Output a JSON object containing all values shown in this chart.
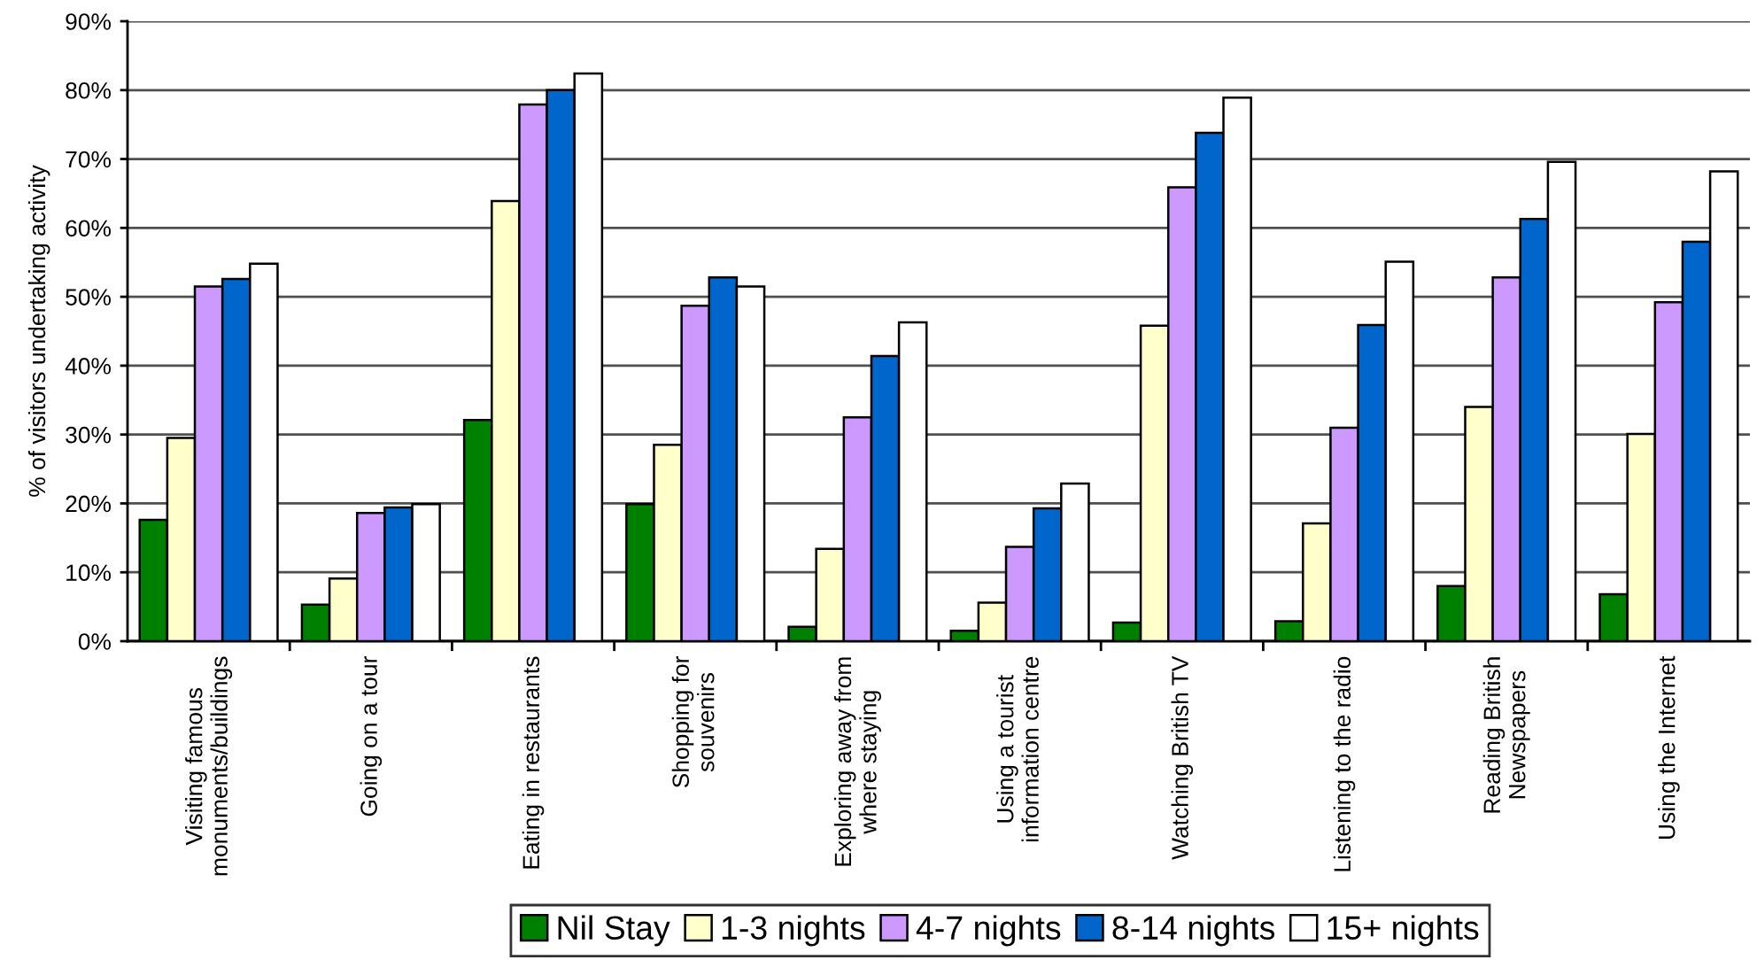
{
  "chart_data": {
    "type": "bar",
    "ylabel": "% of visitors undertaking activity",
    "categories": [
      "Visiting famous\nmonuments/buildings",
      "Going on a tour",
      "Eating in restaurants",
      "Shopping for\nsouvenirs",
      "Exploring away from\nwhere staying",
      "Using a tourist\ninformation centre",
      "Watching British TV",
      "Listening to the radio",
      "Reading British\nNewspapers",
      "Using the Internet"
    ],
    "series": [
      {
        "name": "Nil Stay",
        "color": "#008000",
        "values": [
          17.6,
          5.3,
          32.1,
          19.9,
          2.1,
          1.5,
          2.7,
          2.9,
          8.0,
          6.8
        ]
      },
      {
        "name": "1-3 nights",
        "color": "#ffffcc",
        "values": [
          29.5,
          9.1,
          63.9,
          28.5,
          13.4,
          5.6,
          45.8,
          17.1,
          34.0,
          30.1
        ]
      },
      {
        "name": "4-7 nights",
        "color": "#cc99ff",
        "values": [
          51.5,
          18.6,
          77.9,
          48.7,
          32.5,
          13.7,
          65.9,
          31.0,
          52.8,
          49.2
        ]
      },
      {
        "name": "8-14 nights",
        "color": "#0066cc",
        "values": [
          52.6,
          19.4,
          80.0,
          52.8,
          41.4,
          19.3,
          73.8,
          45.9,
          61.3,
          58.0
        ]
      },
      {
        "name": "15+ nights",
        "color": "#ffffff",
        "values": [
          54.8,
          19.9,
          82.4,
          51.5,
          46.3,
          22.9,
          78.9,
          55.1,
          69.6,
          68.2
        ]
      }
    ],
    "ylim": [
      0,
      90
    ],
    "yticks": [
      {
        "value": 0,
        "label": "0%"
      },
      {
        "value": 10,
        "label": "10%"
      },
      {
        "value": 20,
        "label": "20%"
      },
      {
        "value": 30,
        "label": "30%"
      },
      {
        "value": 40,
        "label": "40%"
      },
      {
        "value": 50,
        "label": "50%"
      },
      {
        "value": 60,
        "label": "60%"
      },
      {
        "value": 70,
        "label": "70%"
      },
      {
        "value": 80,
        "label": "80%"
      },
      {
        "value": 90,
        "label": "90%"
      }
    ],
    "grid": "y",
    "legend": "bottom"
  }
}
